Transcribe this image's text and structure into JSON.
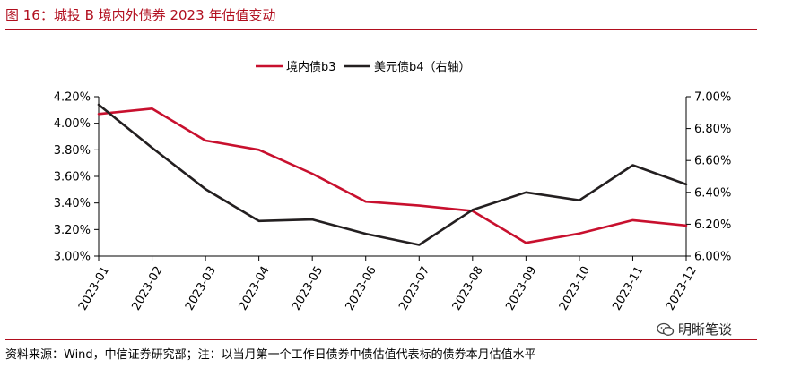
{
  "title": "图 16：城投 B 境内外债券 2023 年估值变动",
  "source": "资料来源：Wind，中信证券研究部；注：以当月第一个工作日债券中债估值代表标的债券本月估值水平",
  "watermark": {
    "text": "明晰笔谈",
    "icon": "wechat-icon"
  },
  "colors": {
    "accent": "#b10e1e",
    "series1": "#c8102e",
    "series2": "#231f20"
  },
  "chart_data": {
    "type": "line",
    "categories": [
      "2023-01",
      "2023-02",
      "2023-03",
      "2023-04",
      "2023-05",
      "2023-06",
      "2023-07",
      "2023-08",
      "2023-09",
      "2023-10",
      "2023-11",
      "2023-12"
    ],
    "series": [
      {
        "name": "境内债b3",
        "axis": "left",
        "values": [
          4.07,
          4.11,
          3.87,
          3.8,
          3.62,
          3.41,
          3.38,
          3.34,
          3.1,
          3.17,
          3.27,
          3.23
        ]
      },
      {
        "name": "美元债b4（右轴）",
        "axis": "right",
        "values": [
          6.95,
          6.68,
          6.42,
          6.22,
          6.23,
          6.14,
          6.07,
          6.29,
          6.4,
          6.35,
          6.57,
          6.45
        ]
      }
    ],
    "y_left": {
      "ylim": [
        3.0,
        4.2
      ],
      "ticks": [
        "4.20%",
        "4.00%",
        "3.80%",
        "3.60%",
        "3.40%",
        "3.20%",
        "3.00%"
      ]
    },
    "y_right": {
      "ylim": [
        6.0,
        7.0
      ],
      "ticks": [
        "7.00%",
        "6.80%",
        "6.60%",
        "6.40%",
        "6.20%",
        "6.00%"
      ]
    },
    "legend": "top-center",
    "grid": false,
    "xlabel": "",
    "ylabel": ""
  }
}
